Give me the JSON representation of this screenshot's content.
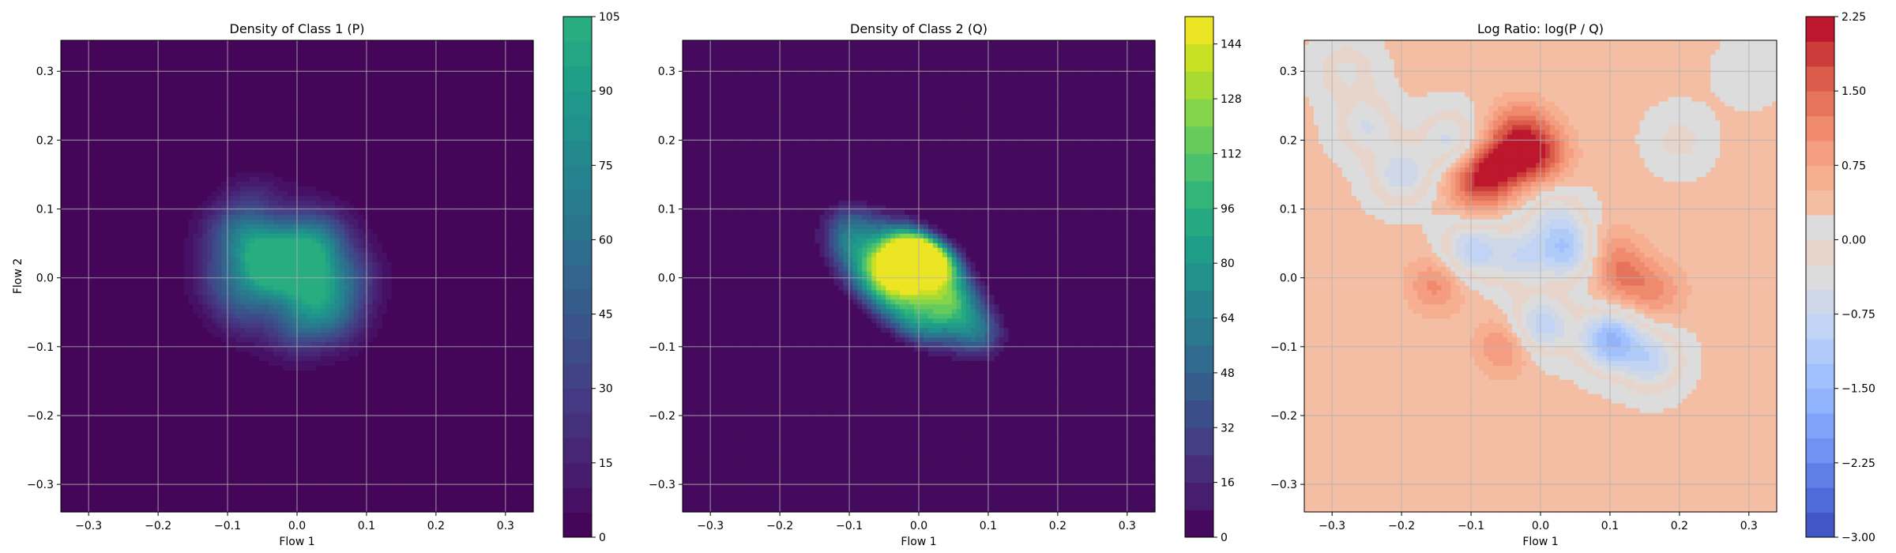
{
  "chart_data": [
    {
      "type": "heatmap",
      "title": "Density of Class 1 (P)",
      "xlabel": "Flow 1",
      "ylabel": "Flow 2",
      "xlim": [
        -0.34,
        0.34
      ],
      "ylim": [
        -0.34,
        0.345
      ],
      "xticks": [
        -0.3,
        -0.2,
        -0.1,
        0.0,
        0.1,
        0.2,
        0.3
      ],
      "xtick_labels": [
        "−0.3",
        "−0.2",
        "−0.1",
        "0.0",
        "0.1",
        "0.2",
        "0.3"
      ],
      "yticks": [
        -0.3,
        -0.2,
        -0.1,
        0.0,
        0.1,
        0.2,
        0.3
      ],
      "ytick_labels": [
        "−0.3",
        "−0.2",
        "−0.1",
        "0.0",
        "0.1",
        "0.2",
        "0.3"
      ],
      "grid": true,
      "colormap": "viridis",
      "background_color": "#440154",
      "colorbar": {
        "min": 0,
        "max": 105,
        "ticks": [
          0,
          15,
          30,
          45,
          60,
          75,
          90,
          105
        ],
        "tick_labels": [
          "0",
          "15",
          "30",
          "45",
          "60",
          "75",
          "90",
          "105"
        ],
        "levels": 21,
        "colors": [
          "#440154",
          "#482173",
          "#433e85",
          "#38588c",
          "#2d708e",
          "#25858e",
          "#1e9b8a",
          "#2ab07f",
          "#52c569",
          "#86d549",
          "#c2df23",
          "#fde725"
        ],
        "color_max_fraction": 0.64
      },
      "region": {
        "cx": -0.015,
        "cy": 0.005,
        "rx": 0.16,
        "ry": 0.14,
        "angle": -30,
        "level": 0.06
      },
      "blobs": [
        {
          "x": -0.05,
          "y": 0.02,
          "v": 60
        },
        {
          "x": 0.02,
          "y": 0.015,
          "v": 55
        },
        {
          "x": 0.0,
          "y": 0.05,
          "v": 45
        },
        {
          "x": -0.025,
          "y": 0.0,
          "v": 50
        },
        {
          "x": 0.03,
          "y": -0.03,
          "v": 50
        },
        {
          "x": -0.1,
          "y": 0.07,
          "v": 30
        },
        {
          "x": -0.06,
          "y": 0.06,
          "v": 40
        },
        {
          "x": 0.04,
          "y": 0.06,
          "v": 35
        },
        {
          "x": 0.08,
          "y": 0.0,
          "v": 30
        },
        {
          "x": -0.08,
          "y": -0.04,
          "v": 30
        },
        {
          "x": 0.0,
          "y": -0.07,
          "v": 35
        },
        {
          "x": 0.06,
          "y": -0.06,
          "v": 30
        },
        {
          "x": -0.11,
          "y": 0.0,
          "v": 25
        },
        {
          "x": -0.07,
          "y": 0.13,
          "v": 18
        }
      ]
    },
    {
      "type": "heatmap",
      "title": "Density of Class 2 (Q)",
      "xlabel": "Flow 1",
      "ylabel": "",
      "xlim": [
        -0.34,
        0.34
      ],
      "ylim": [
        -0.34,
        0.345
      ],
      "xticks": [
        -0.3,
        -0.2,
        -0.1,
        0.0,
        0.1,
        0.2,
        0.3
      ],
      "xtick_labels": [
        "−0.3",
        "−0.2",
        "−0.1",
        "0.0",
        "0.1",
        "0.2",
        "0.3"
      ],
      "yticks": [
        -0.3,
        -0.2,
        -0.1,
        0.0,
        0.1,
        0.2,
        0.3
      ],
      "ytick_labels": [
        "−0.3",
        "−0.2",
        "−0.1",
        "0.0",
        "0.1",
        "0.2",
        "0.3"
      ],
      "grid": true,
      "colormap": "viridis",
      "background_color": "#440154",
      "colorbar": {
        "min": 0,
        "max": 152,
        "ticks": [
          0,
          16,
          32,
          48,
          64,
          80,
          96,
          112,
          128,
          144
        ],
        "tick_labels": [
          "0",
          "16",
          "32",
          "48",
          "64",
          "80",
          "96",
          "112",
          "128",
          "144"
        ],
        "levels": 19,
        "colors": [
          "#440154",
          "#482173",
          "#433e85",
          "#38588c",
          "#2d708e",
          "#25858e",
          "#1e9b8a",
          "#2ab07f",
          "#52c569",
          "#86d549",
          "#c2df23",
          "#fde725"
        ],
        "color_max_fraction": 1.0
      },
      "region": {
        "cx": -0.015,
        "cy": -0.005,
        "rx": 0.15,
        "ry": 0.075,
        "angle": -38,
        "level": 0.06
      },
      "blobs": [
        {
          "x": -0.03,
          "y": 0.03,
          "v": 90
        },
        {
          "x": 0.04,
          "y": 0.04,
          "v": 80
        },
        {
          "x": -0.01,
          "y": 0.02,
          "v": 75
        },
        {
          "x": 0.02,
          "y": 0.02,
          "v": 60
        },
        {
          "x": 0.1,
          "y": -0.09,
          "v": 70
        },
        {
          "x": -0.06,
          "y": 0.0,
          "v": 60
        },
        {
          "x": 0.0,
          "y": -0.07,
          "v": 50
        },
        {
          "x": -0.1,
          "y": 0.08,
          "v": 45
        },
        {
          "x": 0.04,
          "y": -0.03,
          "v": 55
        },
        {
          "x": -0.03,
          "y": -0.03,
          "v": 45
        },
        {
          "x": 0.06,
          "y": -0.05,
          "v": 40
        },
        {
          "x": -0.1,
          "y": 0.04,
          "v": 35
        },
        {
          "x": 0.0,
          "y": 0.06,
          "v": 40
        }
      ]
    },
    {
      "type": "heatmap",
      "title": "Log Ratio: log(P / Q)",
      "xlabel": "Flow 1",
      "ylabel": "",
      "xlim": [
        -0.34,
        0.34
      ],
      "ylim": [
        -0.34,
        0.345
      ],
      "xticks": [
        -0.3,
        -0.2,
        -0.1,
        0.0,
        0.1,
        0.2,
        0.3
      ],
      "xtick_labels": [
        "−0.3",
        "−0.2",
        "−0.1",
        "0.0",
        "0.1",
        "0.2",
        "0.3"
      ],
      "yticks": [
        -0.3,
        -0.2,
        -0.1,
        0.0,
        0.1,
        0.2,
        0.3
      ],
      "ytick_labels": [
        "−0.3",
        "−0.2",
        "−0.1",
        "0.0",
        "0.1",
        "0.2",
        "0.3"
      ],
      "grid": true,
      "colormap": "coolwarm",
      "background_color": "#f3c4ab",
      "colorbar": {
        "min": -3.0,
        "max": 2.25,
        "ticks": [
          -3.0,
          -2.25,
          -1.5,
          -0.75,
          0.0,
          0.75,
          1.5,
          2.25
        ],
        "tick_labels": [
          "−3.00",
          "−2.25",
          "−1.50",
          "−0.75",
          "0.00",
          "0.75",
          "1.50",
          "2.25"
        ],
        "levels": 21,
        "colors": [
          "#3b4cc0",
          "#5977e3",
          "#7b9ff9",
          "#9ebeff",
          "#c0d4f5",
          "#dddcdc",
          "#f2cbb7",
          "#f7ac8e",
          "#ee8468",
          "#d65244",
          "#b40426"
        ],
        "center_value": 0.0
      },
      "base_value": 0.3,
      "blobs": [
        {
          "x": -0.05,
          "y": 0.17,
          "v": 1.5
        },
        {
          "x": 0.0,
          "y": 0.18,
          "v": 1.3
        },
        {
          "x": -0.09,
          "y": 0.14,
          "v": 1.5
        },
        {
          "x": -0.03,
          "y": 0.22,
          "v": 0.9
        },
        {
          "x": -0.15,
          "y": -0.01,
          "v": 0.8
        },
        {
          "x": 0.12,
          "y": 0.0,
          "v": 0.8
        },
        {
          "x": 0.17,
          "y": -0.02,
          "v": 0.6
        },
        {
          "x": -0.05,
          "y": -0.1,
          "v": 0.8
        },
        {
          "x": 0.1,
          "y": 0.04,
          "v": 0.5
        },
        {
          "x": -0.2,
          "y": 0.15,
          "v": -1.0
        },
        {
          "x": -0.13,
          "y": 0.2,
          "v": -0.9
        },
        {
          "x": -0.25,
          "y": 0.22,
          "v": -0.8
        },
        {
          "x": -0.1,
          "y": 0.04,
          "v": -1.2
        },
        {
          "x": 0.04,
          "y": 0.04,
          "v": -1.4
        },
        {
          "x": 0.1,
          "y": -0.09,
          "v": -1.8
        },
        {
          "x": 0.0,
          "y": -0.07,
          "v": -1.3
        },
        {
          "x": 0.16,
          "y": -0.12,
          "v": -1.1
        },
        {
          "x": -0.03,
          "y": 0.03,
          "v": -0.9
        },
        {
          "x": 0.02,
          "y": 0.09,
          "v": -0.7
        },
        {
          "x": 0.2,
          "y": 0.2,
          "v": -0.4
        },
        {
          "x": -0.28,
          "y": 0.3,
          "v": -0.6
        },
        {
          "x": 0.3,
          "y": 0.3,
          "v": -0.3
        }
      ]
    }
  ]
}
